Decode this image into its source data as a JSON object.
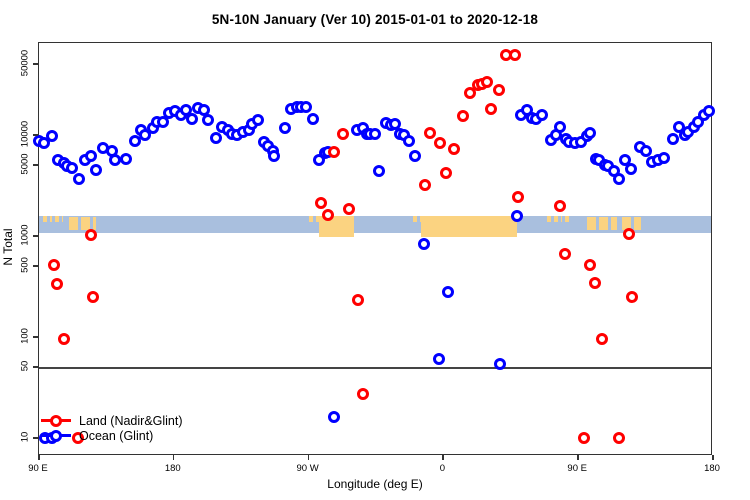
{
  "title": "5N-10N January (Ver 10)   2015-01-01 to 2020-12-18",
  "chart_data": {
    "type": "scatter",
    "title": "5N-10N January (Ver 10)   2015-01-01 to 2020-12-18",
    "xlabel": "Longitude (deg E)",
    "ylabel": "N Total",
    "x_axis": {
      "note": "longitude axis wraps eastward: 90E -> 180 -> 90W -> 0 -> 90E -> 180",
      "range_axis_deg": [
        90,
        540
      ],
      "ticks": [
        {
          "pos": 90,
          "label": "90 E"
        },
        {
          "pos": 180,
          "label": "180"
        },
        {
          "pos": 270,
          "label": "90 W"
        },
        {
          "pos": 360,
          "label": "0"
        },
        {
          "pos": 450,
          "label": "90 E"
        },
        {
          "pos": 540,
          "label": "180"
        }
      ]
    },
    "y_axis": {
      "scale": "log",
      "ticks": [
        10,
        50,
        100,
        500,
        1000,
        5000,
        10000,
        50000
      ],
      "range": [
        9,
        80000
      ]
    },
    "reference_line_value": 50,
    "map_band": {
      "value_range": [
        1080,
        1580
      ],
      "ocean_color": "#a9bfde",
      "land_color": "#fbd381",
      "land_patches": [
        {
          "from": 93,
          "to": 99,
          "style": "specks"
        },
        {
          "from": 101,
          "to": 106,
          "style": "specks"
        },
        {
          "from": 110,
          "to": 128,
          "style": "patchy"
        },
        {
          "from": 270,
          "to": 277,
          "style": "specks"
        },
        {
          "from": 277,
          "to": 300,
          "style": "solid"
        },
        {
          "from": 340,
          "to": 346,
          "style": "specks"
        },
        {
          "from": 345,
          "to": 409,
          "style": "solid"
        },
        {
          "from": 429,
          "to": 439,
          "style": "specks"
        },
        {
          "from": 441,
          "to": 446,
          "style": "specks"
        },
        {
          "from": 456,
          "to": 476,
          "style": "patchy"
        },
        {
          "from": 479,
          "to": 492,
          "style": "patchy"
        }
      ]
    },
    "legend": {
      "position": "bottom-left",
      "entries": [
        {
          "label": "Land (Nadir&Glint)",
          "color": "#ff0000"
        },
        {
          "label": "Ocean (Glint)",
          "color": "#0000ff"
        }
      ]
    },
    "series": [
      {
        "name": "Land (Nadir&Glint)",
        "color": "#ff0000",
        "points": [
          [
            100,
            520
          ],
          [
            102,
            335
          ],
          [
            107,
            96
          ],
          [
            116,
            10
          ],
          [
            125,
            1020
          ],
          [
            126,
            250
          ],
          [
            278,
            2100
          ],
          [
            283,
            1600
          ],
          [
            287,
            6800
          ],
          [
            293,
            10300
          ],
          [
            297,
            1850
          ],
          [
            303,
            230
          ],
          [
            306,
            27
          ],
          [
            348,
            3200
          ],
          [
            351,
            10500
          ],
          [
            358,
            8400
          ],
          [
            362,
            4200
          ],
          [
            367,
            7200
          ],
          [
            373,
            15300
          ],
          [
            378,
            25800
          ],
          [
            383,
            31000
          ],
          [
            386,
            31700
          ],
          [
            389,
            33200
          ],
          [
            392,
            17900
          ],
          [
            397,
            28100
          ],
          [
            402,
            62000
          ],
          [
            408,
            62000
          ],
          [
            410,
            2450
          ],
          [
            438,
            2000
          ],
          [
            441,
            660
          ],
          [
            454,
            10
          ],
          [
            458,
            520
          ],
          [
            461,
            340
          ],
          [
            466,
            96
          ],
          [
            477,
            10
          ],
          [
            484,
            1050
          ],
          [
            486,
            250
          ]
        ]
      },
      {
        "name": "Ocean (Glint)",
        "color": "#0000ff",
        "points": [
          [
            90,
            8800
          ],
          [
            93,
            8400
          ],
          [
            94,
            10
          ],
          [
            99,
            10
          ],
          [
            99,
            9700
          ],
          [
            103,
            5700
          ],
          [
            107,
            5300
          ],
          [
            109,
            4900
          ],
          [
            112,
            4700
          ],
          [
            117,
            3700
          ],
          [
            121,
            5700
          ],
          [
            125,
            6200
          ],
          [
            128,
            4500
          ],
          [
            133,
            7500
          ],
          [
            139,
            7000
          ],
          [
            141,
            5600
          ],
          [
            148,
            5800
          ],
          [
            154,
            8800
          ],
          [
            158,
            11300
          ],
          [
            161,
            9900
          ],
          [
            166,
            11600
          ],
          [
            169,
            13300
          ],
          [
            173,
            13600
          ],
          [
            177,
            16400
          ],
          [
            181,
            17100
          ],
          [
            185,
            15900
          ],
          [
            188,
            17500
          ],
          [
            192,
            14300
          ],
          [
            196,
            18300
          ],
          [
            200,
            17500
          ],
          [
            203,
            14000
          ],
          [
            208,
            9400
          ],
          [
            212,
            12100
          ],
          [
            216,
            11300
          ],
          [
            219,
            10300
          ],
          [
            222,
            9900
          ],
          [
            226,
            10800
          ],
          [
            230,
            11300
          ],
          [
            232,
            12800
          ],
          [
            236,
            14000
          ],
          [
            240,
            8600
          ],
          [
            243,
            7800
          ],
          [
            246,
            7000
          ],
          [
            247,
            6200
          ],
          [
            254,
            11600
          ],
          [
            258,
            17900
          ],
          [
            262,
            18800
          ],
          [
            265,
            18800
          ],
          [
            268,
            18800
          ],
          [
            273,
            14300
          ],
          [
            277,
            5700
          ],
          [
            281,
            6700
          ],
          [
            283,
            6800
          ],
          [
            287,
            16
          ],
          [
            302,
            11300
          ],
          [
            306,
            11600
          ],
          [
            309,
            10300
          ],
          [
            311,
            10300
          ],
          [
            314,
            10300
          ],
          [
            317,
            4400
          ],
          [
            322,
            13100
          ],
          [
            325,
            12500
          ],
          [
            328,
            12800
          ],
          [
            331,
            10300
          ],
          [
            334,
            9900
          ],
          [
            337,
            8800
          ],
          [
            341,
            6200
          ],
          [
            347,
            840
          ],
          [
            357,
            61
          ],
          [
            363,
            280
          ],
          [
            398,
            54
          ],
          [
            409,
            1580
          ],
          [
            412,
            15900
          ],
          [
            416,
            17500
          ],
          [
            419,
            14900
          ],
          [
            422,
            14300
          ],
          [
            426,
            15600
          ],
          [
            432,
            9000
          ],
          [
            435,
            9900
          ],
          [
            438,
            11900
          ],
          [
            442,
            9200
          ],
          [
            444,
            8600
          ],
          [
            448,
            8400
          ],
          [
            452,
            8600
          ],
          [
            456,
            9700
          ],
          [
            458,
            10500
          ],
          [
            462,
            5800
          ],
          [
            464,
            5600
          ],
          [
            468,
            5100
          ],
          [
            470,
            4900
          ],
          [
            474,
            4400
          ],
          [
            477,
            3700
          ],
          [
            481,
            5700
          ],
          [
            485,
            4600
          ],
          [
            491,
            7600
          ],
          [
            495,
            7000
          ],
          [
            499,
            5400
          ],
          [
            503,
            5700
          ],
          [
            507,
            5900
          ],
          [
            513,
            9200
          ],
          [
            517,
            11900
          ],
          [
            521,
            9900
          ],
          [
            523,
            10800
          ],
          [
            527,
            11900
          ],
          [
            530,
            13600
          ],
          [
            534,
            15900
          ],
          [
            537,
            17100
          ]
        ]
      }
    ]
  }
}
